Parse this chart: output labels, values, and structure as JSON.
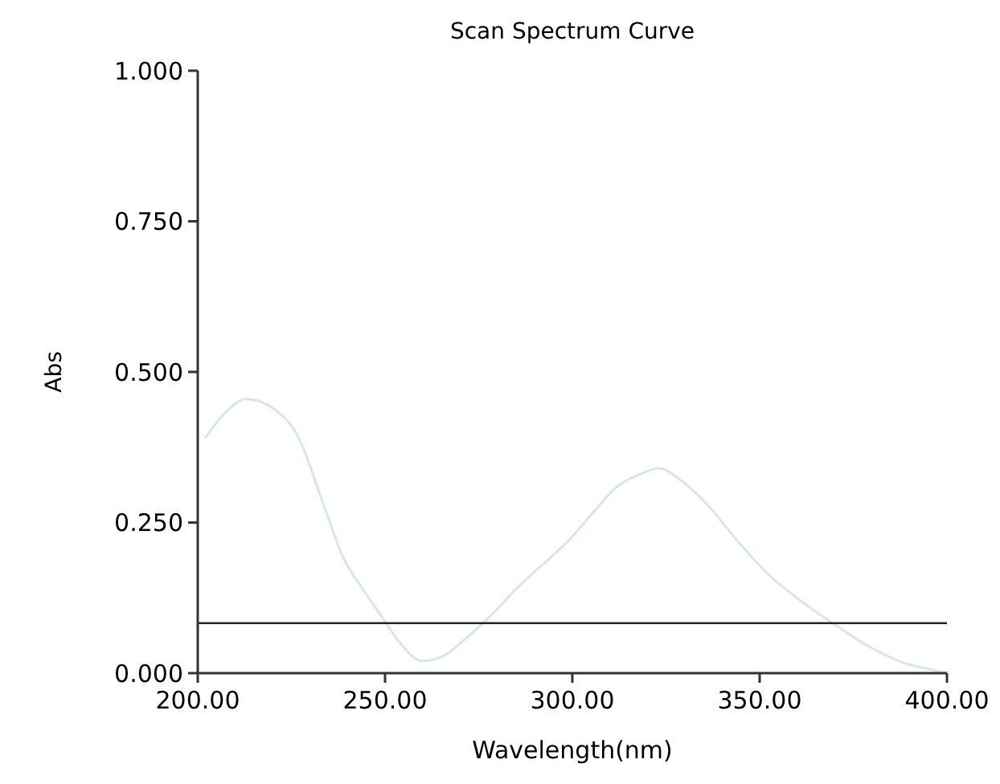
{
  "chart_data": {
    "type": "line",
    "title": "Scan Spectrum Curve",
    "xlabel": "Wavelength(nm)",
    "ylabel": "Abs",
    "xlim": [
      200,
      400
    ],
    "ylim": [
      0,
      1
    ],
    "xticks": [
      {
        "value": 200,
        "label": "200.00"
      },
      {
        "value": 250,
        "label": "250.00"
      },
      {
        "value": 300,
        "label": "300.00"
      },
      {
        "value": 350,
        "label": "350.00"
      },
      {
        "value": 400,
        "label": "400.00"
      }
    ],
    "yticks": [
      {
        "value": 0,
        "label": "0.000"
      },
      {
        "value": 0.25,
        "label": "0.250"
      },
      {
        "value": 0.5,
        "label": "0.500"
      },
      {
        "value": 0.75,
        "label": "0.750"
      },
      {
        "value": 1,
        "label": "1.000"
      }
    ],
    "x": [
      202,
      207,
      213,
      220,
      227,
      233,
      239,
      244,
      249,
      254,
      260,
      266,
      272,
      279,
      285,
      292,
      299,
      306,
      312,
      318,
      323,
      329,
      336,
      344,
      353,
      361,
      369,
      379,
      389,
      395,
      400
    ],
    "series": [
      {
        "color": "#d6e6ee",
        "values": [
          0.39,
          0.43,
          0.455,
          0.44,
          0.39,
          0.29,
          0.19,
          0.14,
          0.095,
          0.05,
          0.02,
          0.03,
          0.06,
          0.1,
          0.14,
          0.18,
          0.22,
          0.27,
          0.31,
          0.33,
          0.34,
          0.32,
          0.28,
          0.22,
          0.16,
          0.12,
          0.085,
          0.045,
          0.016,
          0.007,
          0
        ]
      }
    ],
    "ref_lines": [
      {
        "axis": "y",
        "value": 0.083,
        "color": "#222222"
      }
    ],
    "grid": false,
    "marker": "none",
    "line_style": "solid"
  }
}
